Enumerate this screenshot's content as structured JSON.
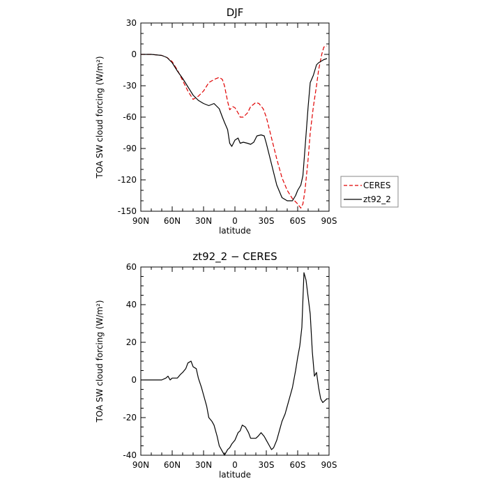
{
  "chart_data": [
    {
      "type": "line",
      "title": "DJF",
      "xlabel": "latitude",
      "ylabel": "TOA SW cloud forcing (W/m²)",
      "xlim": [
        90,
        -90
      ],
      "ylim": [
        -150,
        30
      ],
      "x_tick_values": [
        90,
        60,
        30,
        0,
        -30,
        -60,
        -90
      ],
      "x_tick_labels": [
        "90N",
        "60N",
        "30N",
        "0",
        "30S",
        "60S",
        "90S"
      ],
      "y_ticks": [
        30,
        0,
        -30,
        -60,
        -90,
        -120,
        -150
      ],
      "legend": {
        "position": "right-outside",
        "entries": [
          "CERES",
          "zt92_2"
        ]
      },
      "series": [
        {
          "name": "CERES",
          "color": "#e00000",
          "style": "dashed",
          "x": [
            90,
            80,
            70,
            65,
            60,
            55,
            50,
            45,
            40,
            35,
            30,
            25,
            20,
            15,
            12,
            10,
            7,
            5,
            2,
            0,
            -3,
            -5,
            -8,
            -12,
            -15,
            -20,
            -23,
            -27,
            -30,
            -35,
            -40,
            -45,
            -50,
            -55,
            -60,
            -63,
            -65,
            -67,
            -70,
            -72,
            -75,
            -78,
            -80,
            -83,
            -85,
            -88
          ],
          "y": [
            0,
            0,
            -1,
            -3,
            -7,
            -15,
            -25,
            -35,
            -43,
            -40,
            -35,
            -27,
            -24,
            -22,
            -24,
            -30,
            -45,
            -53,
            -50,
            -51,
            -56,
            -60,
            -60,
            -56,
            -50,
            -46,
            -47,
            -52,
            -60,
            -80,
            -100,
            -118,
            -130,
            -138,
            -143,
            -147,
            -143,
            -130,
            -100,
            -75,
            -50,
            -30,
            -15,
            0,
            7,
            8
          ]
        },
        {
          "name": "zt92_2",
          "color": "#000000",
          "style": "solid",
          "x": [
            90,
            80,
            70,
            65,
            60,
            55,
            50,
            45,
            40,
            35,
            30,
            25,
            20,
            15,
            12,
            10,
            7,
            5,
            3,
            0,
            -3,
            -5,
            -8,
            -12,
            -15,
            -18,
            -21,
            -25,
            -28,
            -30,
            -35,
            -40,
            -45,
            -50,
            -55,
            -58,
            -60,
            -63,
            -65,
            -67,
            -70,
            -72,
            -75,
            -78,
            -80,
            -85,
            -88
          ],
          "y": [
            0,
            0,
            -1,
            -3,
            -8,
            -16,
            -23,
            -31,
            -39,
            -44,
            -47,
            -49,
            -47,
            -52,
            -60,
            -65,
            -72,
            -85,
            -88,
            -82,
            -80,
            -85,
            -84,
            -85,
            -86,
            -84,
            -78,
            -77,
            -78,
            -85,
            -105,
            -125,
            -137,
            -140,
            -140,
            -135,
            -130,
            -125,
            -116,
            -90,
            -50,
            -27,
            -20,
            -10,
            -8,
            -5,
            -4
          ]
        }
      ]
    },
    {
      "type": "line",
      "title": "zt92_2 − CERES",
      "xlabel": "latitude",
      "ylabel": "TOA SW cloud forcing (W/m²)",
      "xlim": [
        90,
        -90
      ],
      "ylim": [
        -40,
        60
      ],
      "x_tick_values": [
        90,
        60,
        30,
        0,
        -30,
        -60,
        -90
      ],
      "x_tick_labels": [
        "90N",
        "60N",
        "30N",
        "0",
        "30S",
        "60S",
        "90S"
      ],
      "y_ticks": [
        60,
        40,
        20,
        0,
        -20,
        -40
      ],
      "series": [
        {
          "color": "#000000",
          "style": "solid",
          "x": [
            90,
            80,
            70,
            66,
            64,
            62,
            60,
            57,
            55,
            52,
            50,
            47,
            45,
            42,
            40,
            37,
            35,
            32,
            30,
            27,
            25,
            22,
            20,
            17,
            15,
            12,
            10,
            7,
            5,
            3,
            0,
            -3,
            -5,
            -7,
            -10,
            -13,
            -15,
            -17,
            -20,
            -22,
            -25,
            -28,
            -30,
            -33,
            -35,
            -37,
            -40,
            -43,
            -45,
            -48,
            -50,
            -53,
            -55,
            -58,
            -60,
            -62,
            -64,
            -66,
            -68,
            -70,
            -72,
            -74,
            -76,
            -78,
            -80,
            -82,
            -84,
            -86,
            -88
          ],
          "y": [
            0,
            0,
            0,
            1,
            2,
            0,
            1,
            1,
            1,
            3,
            4,
            6,
            9,
            10,
            7,
            6,
            1,
            -4,
            -8,
            -14,
            -20,
            -22,
            -24,
            -30,
            -35,
            -38,
            -40,
            -37,
            -36,
            -34,
            -32,
            -28,
            -27,
            -24,
            -25,
            -28,
            -31,
            -31,
            -31,
            -30,
            -28,
            -30,
            -32,
            -35,
            -37,
            -36,
            -32,
            -26,
            -22,
            -18,
            -14,
            -8,
            -4,
            5,
            12,
            18,
            28,
            57,
            53,
            44,
            35,
            15,
            2,
            4,
            -4,
            -10,
            -12,
            -11,
            -10
          ]
        }
      ]
    }
  ]
}
